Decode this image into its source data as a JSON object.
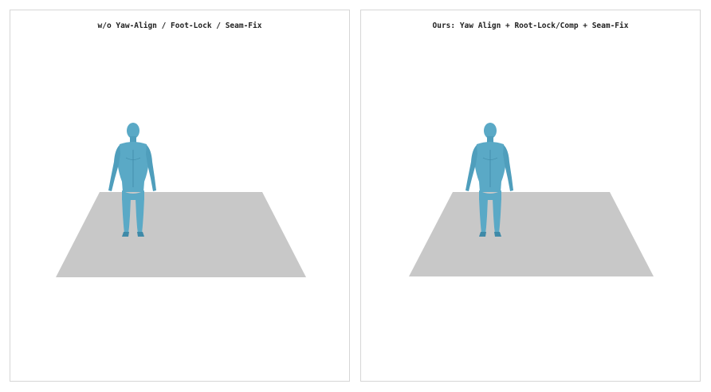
{
  "panels": [
    {
      "title": "w/o Yaw-Align / Foot-Lock / Seam-Fix",
      "variant": "baseline"
    },
    {
      "title": "Ours: Yaw Align + Root-Lock/Comp + Seam-Fix",
      "variant": "ours"
    }
  ],
  "colors": {
    "floor": "#c8c8c8",
    "body": "#5aa9c6",
    "body_shadow": "#3f8aa8",
    "panel_border": "#d6d6d6",
    "title_text": "#222222"
  },
  "icons": {
    "figure": "human-body-mesh",
    "floor": "ground-plane"
  }
}
